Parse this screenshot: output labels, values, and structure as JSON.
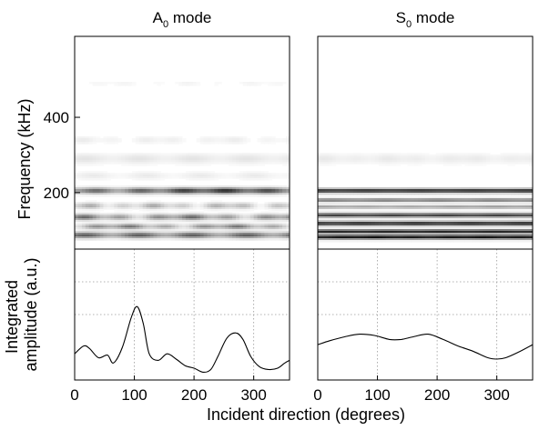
{
  "chart_data": [
    {
      "type": "heatmap",
      "title_main": "A",
      "title_sub": "0",
      "title_rest": " mode",
      "ylabel": "Frequency (kHz)",
      "yticks": [
        "200",
        "400"
      ],
      "ytick_values": [
        200,
        400
      ],
      "ylim": [
        50,
        615
      ],
      "xlim": [
        0,
        360
      ],
      "colormap": "grayscale, white = low, black = high",
      "bands": [
        {
          "center_khz": 87,
          "width": 8,
          "intensity": 0.85,
          "modulation": 0.7
        },
        {
          "center_khz": 110,
          "width": 7,
          "intensity": 0.55,
          "modulation": 0.8
        },
        {
          "center_khz": 135,
          "width": 8,
          "intensity": 0.6,
          "modulation": 0.8
        },
        {
          "center_khz": 165,
          "width": 8,
          "intensity": 0.35,
          "modulation": 0.9
        },
        {
          "center_khz": 205,
          "width": 8,
          "intensity": 0.85,
          "modulation": 0.6
        },
        {
          "center_khz": 245,
          "width": 10,
          "intensity": 0.12,
          "modulation": 0.9
        },
        {
          "center_khz": 290,
          "width": 14,
          "intensity": 0.12,
          "modulation": 0.8
        },
        {
          "center_khz": 340,
          "width": 10,
          "intensity": 0.08,
          "modulation": 0.9
        },
        {
          "center_khz": 490,
          "width": 6,
          "intensity": 0.05,
          "modulation": 1.0
        }
      ]
    },
    {
      "type": "heatmap",
      "title_main": "S",
      "title_sub": "0",
      "title_rest": " mode",
      "ylim": [
        50,
        615
      ],
      "xlim": [
        0,
        360
      ],
      "colormap": "grayscale, white = low, black = high",
      "bands": [
        {
          "center_khz": 82,
          "width": 6,
          "intensity": 0.95,
          "modulation": 0.1
        },
        {
          "center_khz": 97,
          "width": 5,
          "intensity": 0.9,
          "modulation": 0.1
        },
        {
          "center_khz": 118,
          "width": 6,
          "intensity": 0.9,
          "modulation": 0.15
        },
        {
          "center_khz": 140,
          "width": 6,
          "intensity": 0.75,
          "modulation": 0.15
        },
        {
          "center_khz": 162,
          "width": 5,
          "intensity": 0.4,
          "modulation": 0.2
        },
        {
          "center_khz": 180,
          "width": 5,
          "intensity": 0.55,
          "modulation": 0.2
        },
        {
          "center_khz": 205,
          "width": 6,
          "intensity": 0.85,
          "modulation": 0.1
        },
        {
          "center_khz": 290,
          "width": 14,
          "intensity": 0.09,
          "modulation": 0.5
        }
      ]
    },
    {
      "type": "line",
      "panel": "A0 integrated amplitude",
      "ylabel": "Integrated amplitude (a.u.)",
      "xlim": [
        0,
        360
      ],
      "ylim": [
        0,
        1
      ],
      "x": [
        0,
        15,
        25,
        40,
        55,
        65,
        80,
        95,
        105,
        115,
        125,
        140,
        155,
        170,
        185,
        200,
        215,
        228,
        240,
        255,
        270,
        282,
        295,
        310,
        325,
        340,
        352,
        360
      ],
      "y": [
        0.2,
        0.26,
        0.24,
        0.17,
        0.19,
        0.13,
        0.25,
        0.48,
        0.56,
        0.43,
        0.2,
        0.15,
        0.2,
        0.16,
        0.11,
        0.09,
        0.06,
        0.08,
        0.18,
        0.32,
        0.36,
        0.31,
        0.18,
        0.1,
        0.08,
        0.09,
        0.13,
        0.15
      ]
    },
    {
      "type": "line",
      "panel": "S0 integrated amplitude",
      "xlabel": "Incident direction (degrees)",
      "xticks": [
        "0",
        "100",
        "200",
        "300"
      ],
      "xtick_values": [
        0,
        100,
        200,
        300
      ],
      "xlim": [
        0,
        360
      ],
      "ylim": [
        0,
        1
      ],
      "x": [
        0,
        20,
        45,
        70,
        95,
        120,
        140,
        160,
        185,
        210,
        235,
        260,
        285,
        300,
        315,
        335,
        360
      ],
      "y": [
        0.27,
        0.3,
        0.33,
        0.35,
        0.34,
        0.31,
        0.31,
        0.33,
        0.35,
        0.31,
        0.26,
        0.22,
        0.17,
        0.16,
        0.17,
        0.21,
        0.27
      ]
    }
  ]
}
